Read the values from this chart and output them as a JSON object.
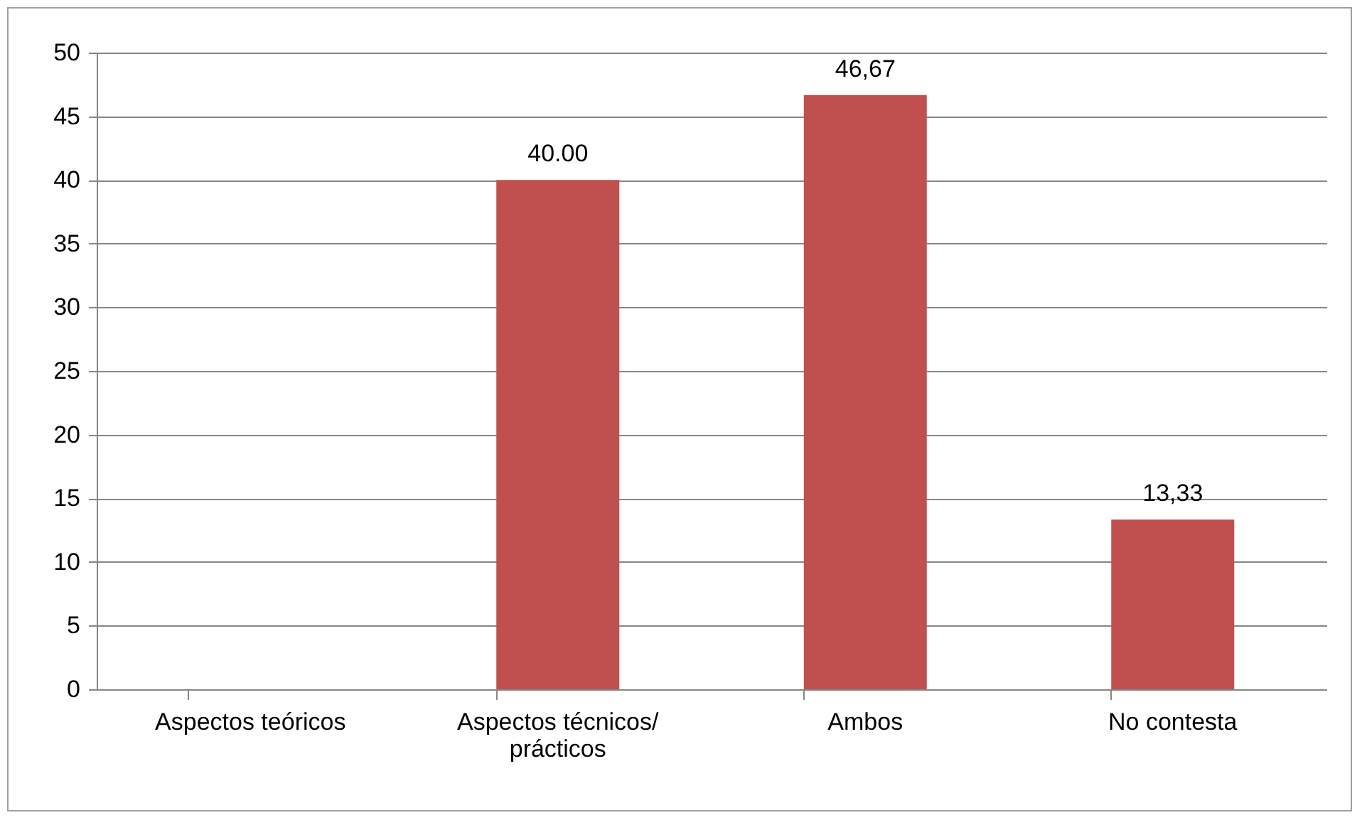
{
  "chart_data": {
    "type": "bar",
    "categories": [
      "Aspectos teóricos",
      "Aspectos técnicos/ prácticos",
      "Ambos",
      "No contesta"
    ],
    "values": [
      0,
      40.0,
      46.67,
      13.33
    ],
    "value_labels": [
      null,
      "40.00",
      "46,67",
      "13,33"
    ],
    "color": "#c0504d",
    "ylim": [
      0,
      50
    ],
    "yticks": [
      0,
      5,
      10,
      15,
      20,
      25,
      30,
      35,
      40,
      45,
      50
    ],
    "grid": true
  }
}
